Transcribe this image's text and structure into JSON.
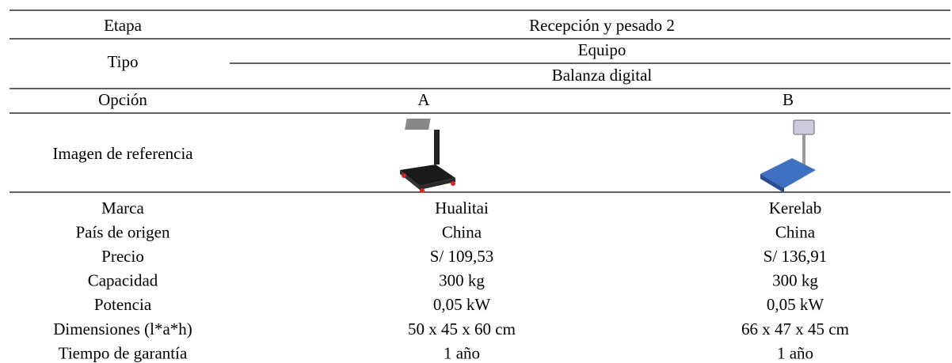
{
  "table": {
    "header": {
      "stage_label": "Etapa",
      "stage": "Recepción y pesado 2",
      "type_label": "Tipo",
      "type": "Equipo",
      "subtype": "Balanza digital",
      "option_label": "Opción",
      "options": [
        "A",
        "B"
      ],
      "image_label": "Imagen de referencia"
    },
    "rows": [
      [
        "Marca",
        "Hualitai",
        "Kerelab"
      ],
      [
        "País de origen",
        "China",
        "China"
      ],
      [
        "Precio",
        "S/ 109,53",
        "S/ 136,91"
      ],
      [
        "Capacidad",
        "300 kg",
        "300 kg"
      ],
      [
        "Potencia",
        "0,05 kW",
        "0,05 kW"
      ],
      [
        "Dimensiones (l*a*h)",
        "50 x 45 x 60 cm",
        "66 x 47 x 45 cm"
      ],
      [
        "Tiempo de garantía",
        "1 año",
        "1 año"
      ]
    ]
  }
}
